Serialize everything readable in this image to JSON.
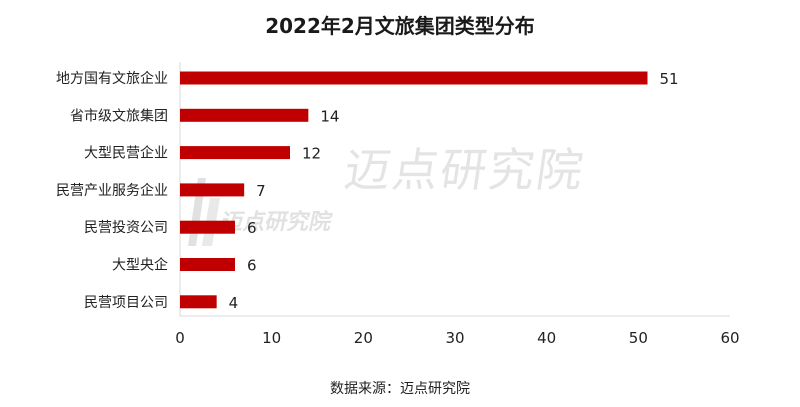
{
  "title": "2022年2月文旅集团类型分布",
  "source": "数据来源：迈点研究院",
  "watermark": {
    "large": "迈点研究院",
    "small": "迈点研究院"
  },
  "colors": {
    "bar": "#c00000",
    "axis": "#d9d9d9",
    "text": "#222222"
  },
  "chart_data": {
    "type": "bar",
    "orientation": "horizontal",
    "categories": [
      "地方国有文旅企业",
      "省市级文旅集团",
      "大型民营企业",
      "民营产业服务企业",
      "民营投资公司",
      "大型央企",
      "民营项目公司"
    ],
    "values": [
      51,
      14,
      12,
      7,
      6,
      6,
      4
    ],
    "xlim": [
      0,
      60
    ],
    "xticks": [
      0,
      10,
      20,
      30,
      40,
      50,
      60
    ],
    "grid": false,
    "legend": "none",
    "data_labels": true
  }
}
